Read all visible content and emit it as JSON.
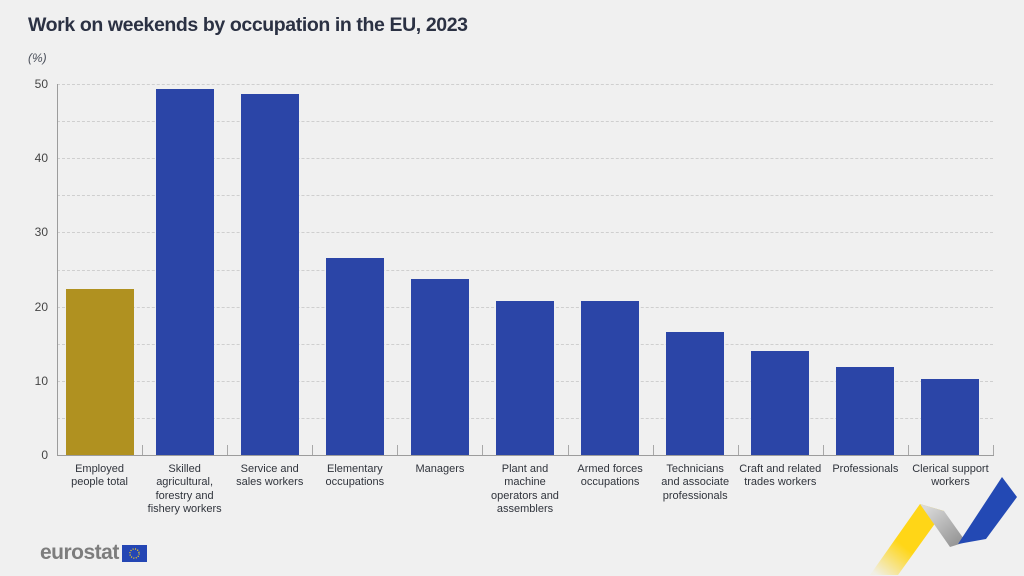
{
  "chart_data": {
    "type": "bar",
    "title": "Work on weekends by occupation in the EU, 2023",
    "unit_label": "(%)",
    "xlabel": "",
    "ylabel": "(%)",
    "ylim": [
      0,
      50
    ],
    "yticks": [
      0,
      10,
      20,
      30,
      40,
      50
    ],
    "grid_interval": 5,
    "grid_style": "dashed",
    "legend": "none",
    "categories": [
      "Employed\npeople total",
      "Skilled\nagricultural,\nforestry and\nfishery workers",
      "Service and\nsales workers",
      "Elementary\noccupations",
      "Managers",
      "Plant and\nmachine\noperators and\nassemblers",
      "Armed forces\noccupations",
      "Technicians\nand associate\nprofessionals",
      "Craft and related\ntrades workers",
      "Professionals",
      "Clerical support\nworkers"
    ],
    "values": [
      22.4,
      49.3,
      48.7,
      26.6,
      23.7,
      20.8,
      20.8,
      16.6,
      14.0,
      11.8,
      10.3
    ],
    "highlight_index": 0,
    "colors": {
      "total_bar": "#b09120",
      "default_bar": "#2b45a7",
      "gridline": "#cfcfcf",
      "axis": "#9c9c9c",
      "title_text": "#2b3143",
      "label_text": "#30343c"
    }
  },
  "footer": {
    "brand": "eurostat",
    "flag": {
      "blue": "#2446b4",
      "star_yellow": "#ffd617"
    },
    "ribbon": {
      "yellow": "#ffd617",
      "blue": "#2349b4",
      "gray_light": "#d9d9d9",
      "gray_dark": "#8f8f8f"
    }
  }
}
